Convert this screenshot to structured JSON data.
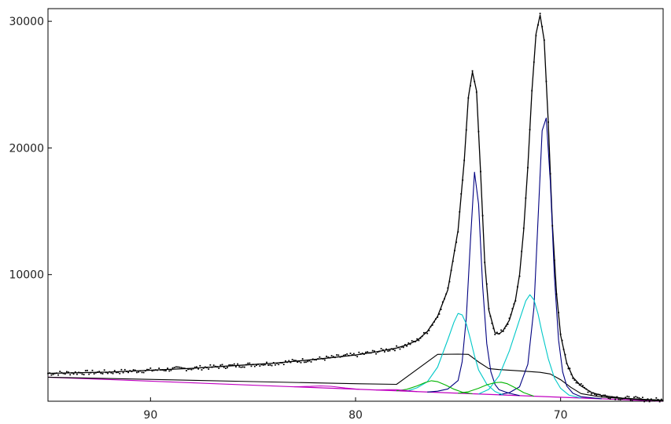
{
  "chart_data": {
    "type": "line",
    "title": "",
    "xlabel": "",
    "ylabel": "",
    "x_reversed": true,
    "xlim": [
      95,
      65
    ],
    "ylim": [
      0,
      31000
    ],
    "x_ticks": [
      90,
      80,
      70
    ],
    "x_tick_labels": [
      "90",
      "80",
      "70"
    ],
    "y_ticks": [
      10000,
      20000,
      30000
    ],
    "y_tick_labels": [
      "10000",
      "20000",
      "30000"
    ],
    "grid": false,
    "legend": "none",
    "baseline": {
      "x": [
        95,
        65
      ],
      "y": [
        1900,
        0
      ]
    },
    "series": [
      {
        "role": "measured",
        "color": "#000000",
        "style": "dotted",
        "x": [
          95,
          92,
          90,
          88,
          86,
          84,
          82,
          80,
          79,
          78,
          77.5,
          77,
          76.5,
          76,
          75.5,
          75,
          74.7,
          74.5,
          74.3,
          74.1,
          73.9,
          73.7,
          73.5,
          73.2,
          73,
          72.8,
          72.5,
          72.2,
          72,
          71.8,
          71.6,
          71.4,
          71.2,
          71,
          70.8,
          70.6,
          70.4,
          70.2,
          70,
          69.7,
          69.4,
          69,
          68.5,
          68,
          67,
          66,
          65
        ],
        "y": [
          2200,
          2300,
          2450,
          2600,
          2800,
          3000,
          3300,
          3650,
          3900,
          4200,
          4450,
          4800,
          5500,
          6700,
          8800,
          13500,
          19000,
          24000,
          26000,
          24500,
          18000,
          11000,
          7200,
          5400,
          5300,
          5600,
          6400,
          8000,
          10000,
          13500,
          18500,
          24500,
          29000,
          30500,
          28500,
          22000,
          14000,
          8500,
          5200,
          3000,
          1900,
          1200,
          700,
          450,
          250,
          150,
          80
        ]
      },
      {
        "role": "envelope",
        "color": "#000000",
        "style": "solid",
        "x": [
          95,
          92,
          90,
          88,
          86,
          84,
          82,
          80,
          79,
          78,
          77.5,
          77,
          76.5,
          76,
          75.5,
          75,
          74.7,
          74.5,
          74.3,
          74.1,
          73.9,
          73.7,
          73.5,
          73.2,
          73,
          72.8,
          72.5,
          72.2,
          72,
          71.8,
          71.6,
          71.4,
          71.2,
          71,
          70.8,
          70.6,
          70.4,
          70.2,
          70,
          69.7,
          69.4,
          69,
          68.5,
          68,
          67,
          66,
          65
        ],
        "y": [
          2200,
          2300,
          2450,
          2600,
          2800,
          3000,
          3300,
          3650,
          3900,
          4200,
          4450,
          4800,
          5500,
          6700,
          8800,
          13500,
          19000,
          24000,
          26000,
          24500,
          18000,
          11000,
          7200,
          5400,
          5300,
          5600,
          6400,
          8000,
          10000,
          13500,
          18500,
          24500,
          29000,
          30500,
          28500,
          22000,
          14000,
          8500,
          5200,
          3000,
          1900,
          1200,
          700,
          450,
          250,
          150,
          80
        ]
      },
      {
        "role": "background",
        "color": "#000000",
        "style": "solid",
        "x": [
          95,
          85,
          80,
          78,
          76,
          75,
          74.5,
          74,
          73.5,
          73,
          72,
          71,
          70.5,
          70,
          69.5,
          69,
          68,
          66,
          65
        ],
        "y": [
          1900,
          1550,
          1380,
          1330,
          3700,
          3720,
          3700,
          3100,
          2580,
          2500,
          2400,
          2280,
          2150,
          1700,
          1100,
          600,
          330,
          110,
          0
        ]
      },
      {
        "role": "component",
        "color": "#000080",
        "style": "solid",
        "x": [
          76.5,
          76,
          75.5,
          75,
          74.8,
          74.6,
          74.4,
          74.2,
          74,
          73.8,
          73.6,
          73.4,
          73.2,
          73,
          72.5,
          72
        ],
        "y": [
          0,
          100,
          300,
          1000,
          2500,
          6000,
          12000,
          17500,
          15000,
          8500,
          4000,
          1800,
          800,
          400,
          150,
          0
        ]
      },
      {
        "role": "component",
        "color": "#000080",
        "style": "solid",
        "x": [
          73,
          72.5,
          72,
          71.6,
          71.3,
          71.1,
          70.9,
          70.7,
          70.5,
          70.3,
          70.1,
          69.9,
          69.7,
          69.4,
          69,
          68
        ],
        "y": [
          0,
          200,
          700,
          2500,
          7000,
          14000,
          21000,
          22000,
          17000,
          9500,
          4500,
          2000,
          900,
          350,
          100,
          0
        ]
      },
      {
        "role": "component",
        "color": "#00c8c8",
        "style": "solid",
        "x": [
          77.5,
          77,
          76.5,
          76,
          75.5,
          75.2,
          75,
          74.8,
          74.6,
          74.4,
          74.2,
          74,
          73.6,
          73.2,
          72.8
        ],
        "y": [
          0,
          300,
          800,
          2000,
          4200,
          5600,
          6300,
          6200,
          5500,
          4300,
          3000,
          1900,
          800,
          250,
          0
        ]
      },
      {
        "role": "component",
        "color": "#00c8c8",
        "style": "solid",
        "x": [
          74,
          73.5,
          73,
          72.5,
          72,
          71.7,
          71.5,
          71.3,
          71.1,
          70.9,
          70.6,
          70.3,
          70,
          69.6,
          69
        ],
        "y": [
          0,
          400,
          1500,
          3500,
          6000,
          7500,
          8000,
          7600,
          6500,
          5000,
          3000,
          1500,
          700,
          200,
          0
        ]
      },
      {
        "role": "component",
        "color": "#00b400",
        "style": "solid",
        "x": [
          78,
          77.5,
          77,
          76.6,
          76.3,
          76,
          75.6,
          75.2,
          74.8,
          74.3
        ],
        "y": [
          0,
          150,
          450,
          750,
          900,
          850,
          600,
          300,
          100,
          0
        ]
      },
      {
        "role": "component",
        "color": "#00b400",
        "style": "solid",
        "x": [
          75,
          74.5,
          74,
          73.6,
          73.2,
          72.9,
          72.6,
          72.2,
          71.8,
          71.3
        ],
        "y": [
          0,
          150,
          450,
          750,
          950,
          1000,
          900,
          600,
          250,
          0
        ]
      },
      {
        "role": "component",
        "color": "#c000c0",
        "style": "solid",
        "x": [
          83,
          82.2,
          81.7,
          81.2,
          80.5,
          79.8
        ],
        "y": [
          0,
          80,
          150,
          150,
          60,
          0
        ]
      },
      {
        "role": "component",
        "color": "#c000c0",
        "style": "solid",
        "x": [
          79,
          78.4,
          78,
          77.6,
          77
        ],
        "y": [
          0,
          60,
          90,
          50,
          0
        ]
      }
    ]
  }
}
